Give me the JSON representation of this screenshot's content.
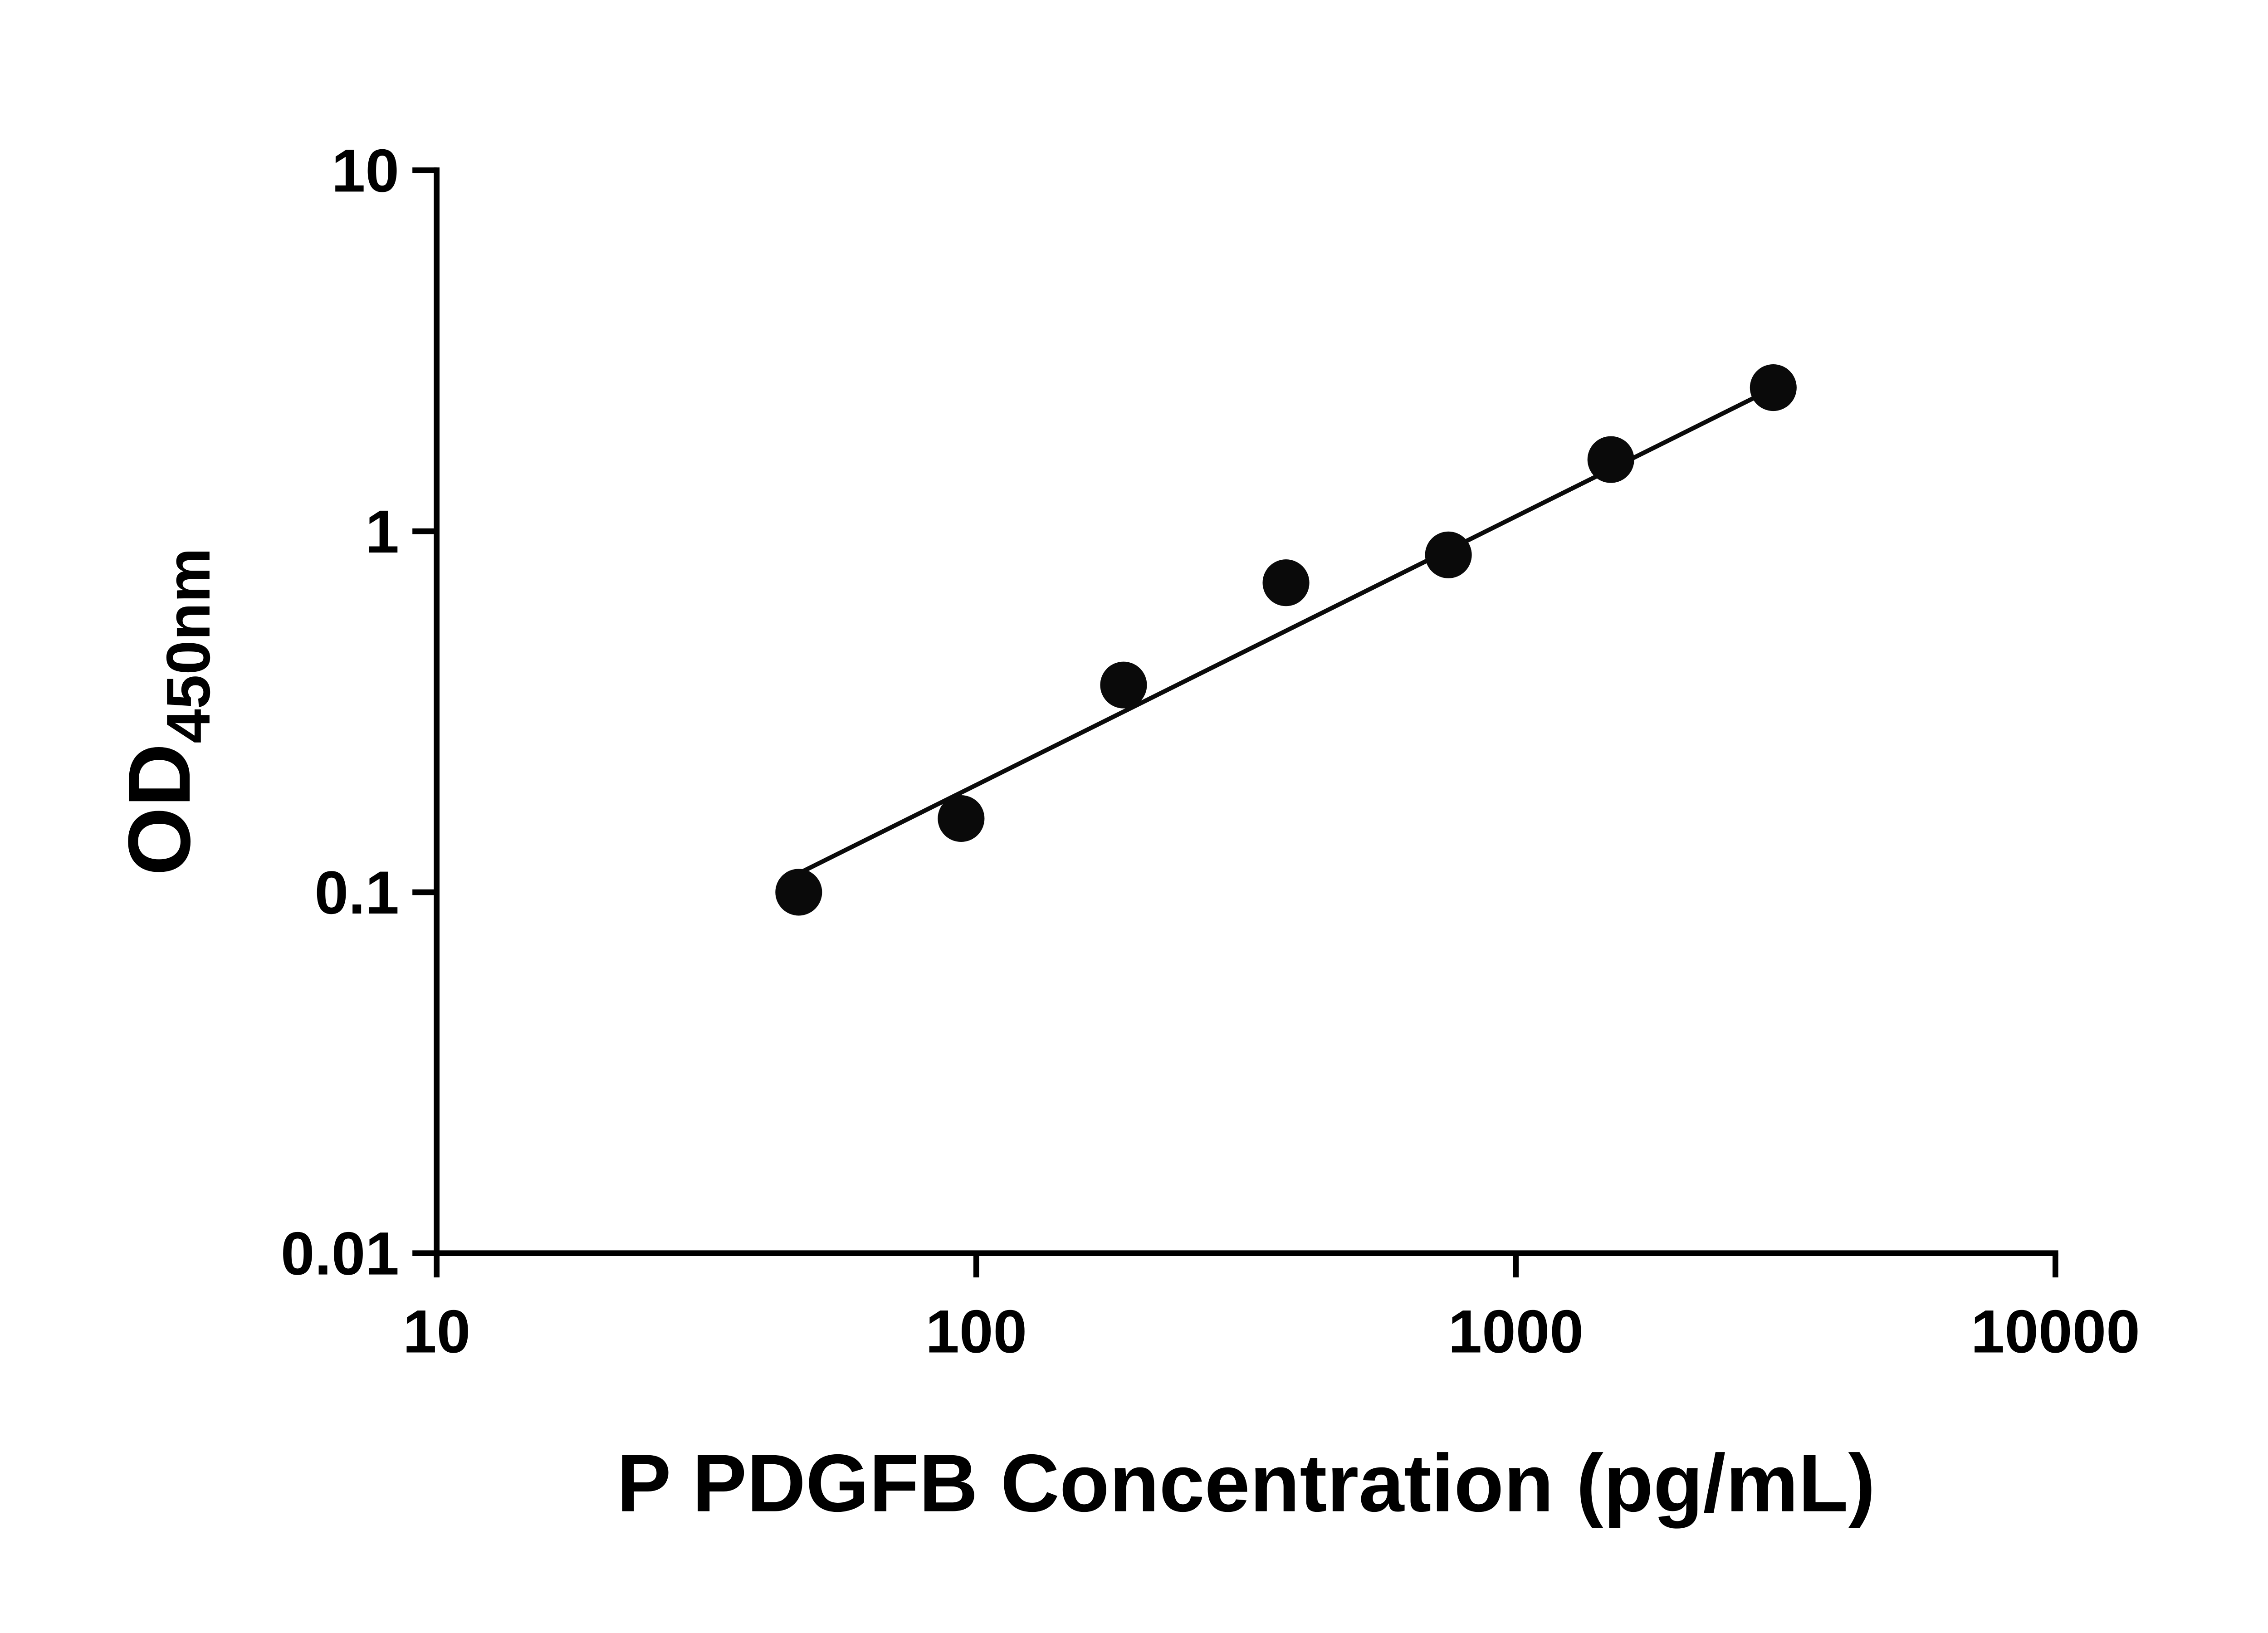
{
  "figure": {
    "background": "#ffffff"
  },
  "chart_data": {
    "type": "scatter",
    "title": "",
    "xlabel": "P PDGFB Concentration (pg/mL)",
    "ylabel_main": "OD",
    "ylabel_sub": "450nm",
    "xscale": "log",
    "yscale": "log",
    "xlim": [
      10,
      10000
    ],
    "ylim": [
      0.01,
      10
    ],
    "x_ticks": [
      10,
      100,
      1000,
      10000
    ],
    "x_tick_labels": [
      "10",
      "100",
      "1000",
      "10000"
    ],
    "y_ticks": [
      10,
      1,
      0.1,
      0.01
    ],
    "y_tick_labels": [
      "10",
      "1",
      "0.1",
      "0.01"
    ],
    "grid": false,
    "legend": "none",
    "series": [
      {
        "name": "standard-curve-points",
        "x": [
          46.88,
          93.75,
          187.5,
          375,
          750,
          1500,
          3000
        ],
        "y": [
          0.1,
          0.16,
          0.375,
          0.72,
          0.86,
          1.58,
          2.5
        ]
      }
    ],
    "trend_line": {
      "x_start": 47,
      "y_start": 0.113,
      "x_end": 3050,
      "y_end": 2.52
    },
    "marker_color": "#0a0a0a",
    "line_color": "#0a0a0a",
    "axis_color": "#000000"
  }
}
